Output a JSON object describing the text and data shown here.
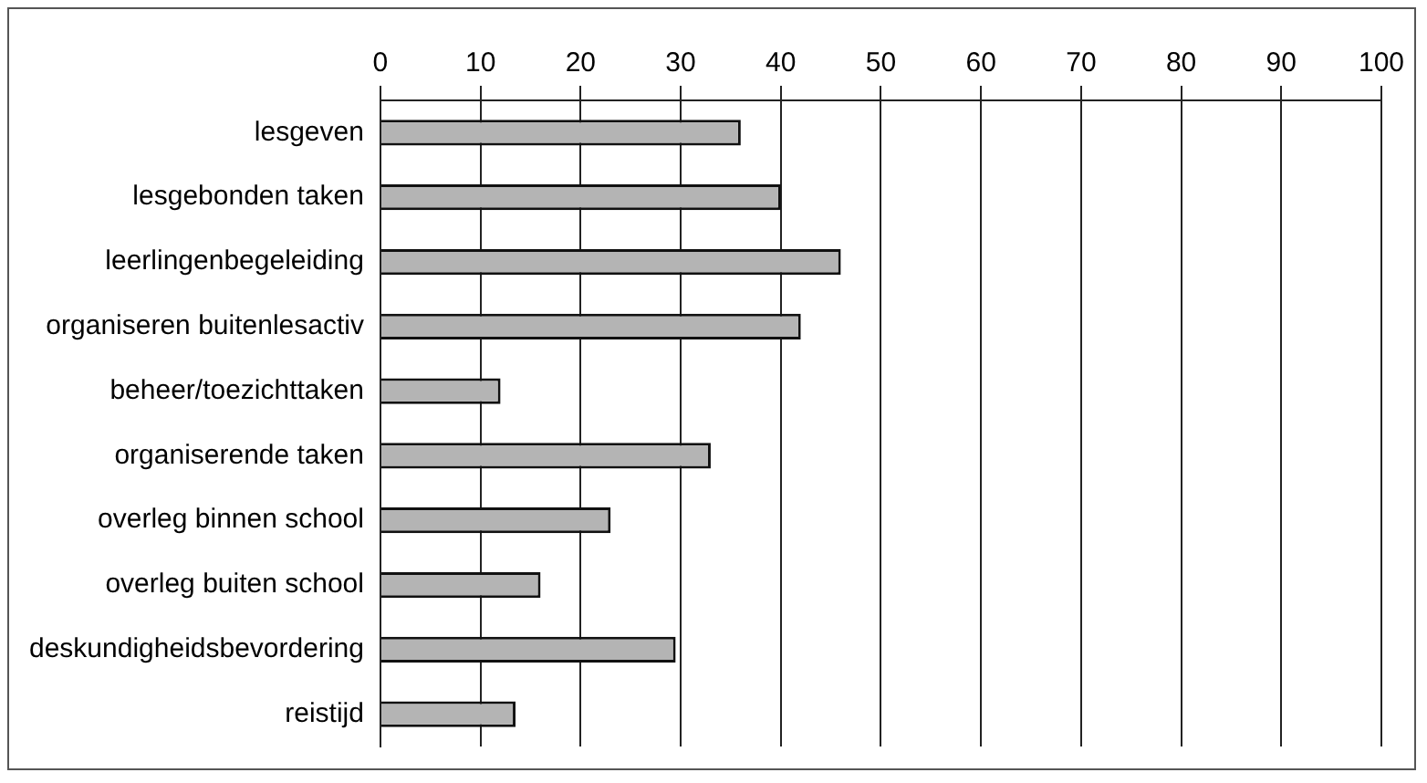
{
  "chart_data": {
    "type": "bar",
    "orientation": "horizontal",
    "categories": [
      "lesgeven",
      "lesgebonden taken",
      "leerlingenbegeleiding",
      "organiseren buitenlesactiv",
      "beheer/toezichttaken",
      "organiserende taken",
      "overleg binnen school",
      "overleg buiten school",
      "deskundigheidsbevordering",
      "reistijd"
    ],
    "values": [
      36,
      40,
      46,
      42,
      12,
      33,
      23,
      16,
      29.5,
      13.5
    ],
    "color": "#b4b4b4",
    "xlim": [
      0,
      100
    ],
    "xticks": [
      0,
      10,
      20,
      30,
      40,
      50,
      60,
      70,
      80,
      90,
      100
    ],
    "grid": "x",
    "legend": false
  }
}
